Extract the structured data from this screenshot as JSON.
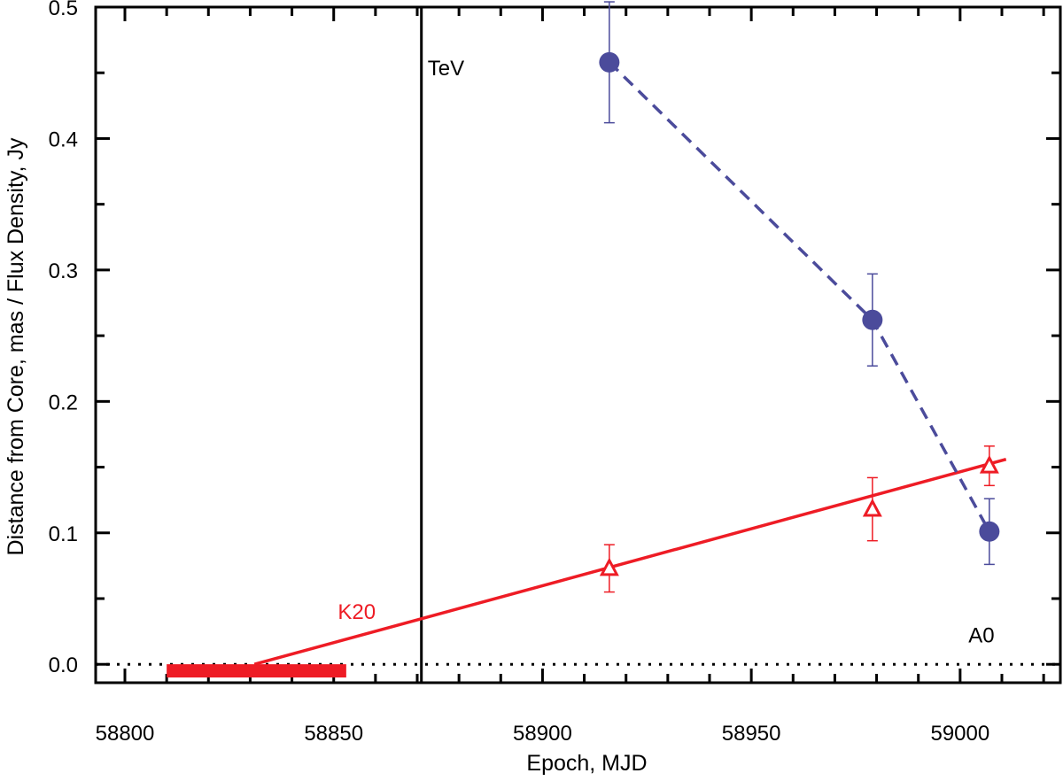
{
  "chart_data": {
    "type": "scatter",
    "title": "",
    "xlabel": "Epoch, MJD",
    "ylabel": "Distance from Core, mas / Flux Density, Jy",
    "xlim": [
      58793,
      59024
    ],
    "ylim": [
      -0.014,
      0.5
    ],
    "xticks": [
      58800,
      58850,
      58900,
      58950,
      59000
    ],
    "xtick_labels": [
      "58800",
      "58850",
      "58900",
      "58950",
      "59000"
    ],
    "yticks": [
      0.0,
      0.1,
      0.2,
      0.3,
      0.4,
      0.5
    ],
    "ytick_labels": [
      "0.0",
      "0.1",
      "0.2",
      "0.3",
      "0.4",
      "0.5"
    ],
    "colors": {
      "flux": "#4b4b9b",
      "distance": "#ee1c25",
      "axes": "#000000"
    },
    "series": [
      {
        "name": "Flux Density",
        "marker": "circle",
        "line": "dashed",
        "x": [
          58916,
          58979,
          59007
        ],
        "y": [
          0.458,
          0.262,
          0.101
        ],
        "err": [
          0.046,
          0.035,
          0.025
        ]
      },
      {
        "name": "Distance from Core",
        "marker": "open-triangle",
        "line": "none",
        "x": [
          58916,
          58979,
          59007
        ],
        "y": [
          0.073,
          0.118,
          0.151
        ],
        "err": [
          0.018,
          0.024,
          0.015
        ]
      }
    ],
    "fit_line": {
      "name": "linear fit",
      "x": [
        58831,
        59011
      ],
      "y": [
        0.0,
        0.156
      ]
    },
    "ejection_band": {
      "x": [
        58810,
        58853
      ],
      "y": -0.005
    },
    "reference_line": {
      "y": 0.0,
      "style": "dotted"
    },
    "event_line": {
      "x": 58871
    },
    "annotations": [
      {
        "text": "TeV",
        "x": 58872.5,
        "y": 0.455
      },
      {
        "text": "K20",
        "x": 58851,
        "y": 0.04
      },
      {
        "text": "A0",
        "x": 59002,
        "y": 0.022
      }
    ]
  }
}
